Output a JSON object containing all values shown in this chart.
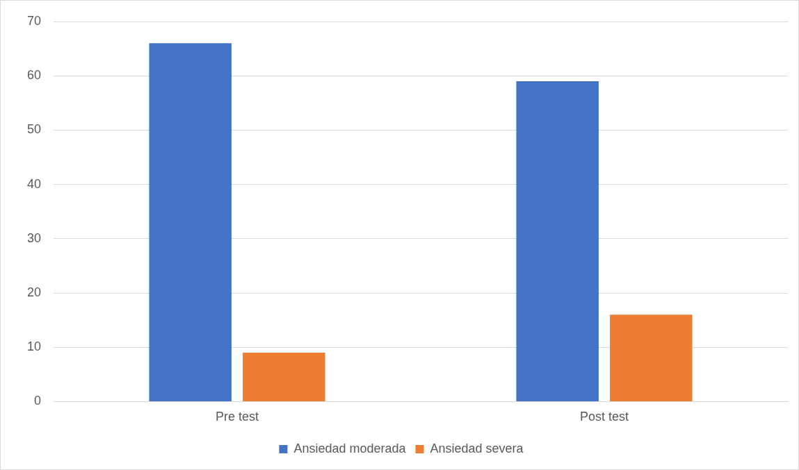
{
  "chart_data": {
    "type": "bar",
    "categories": [
      "Pre test",
      "Post test"
    ],
    "series": [
      {
        "name": "Ansiedad moderada",
        "color": "#4472c4",
        "values": [
          66,
          59
        ]
      },
      {
        "name": "Ansiedad severa",
        "color": "#ed7d31",
        "values": [
          9,
          16
        ]
      }
    ],
    "ylim": [
      0,
      70
    ],
    "yticks": [
      0,
      10,
      20,
      30,
      40,
      50,
      60,
      70
    ],
    "grid": "y",
    "legend": "bottom"
  }
}
